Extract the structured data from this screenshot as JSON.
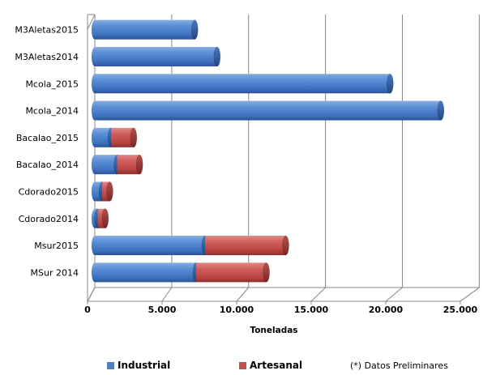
{
  "chart_data": {
    "type": "bar",
    "orientation": "horizontal",
    "stacked": true,
    "categories": [
      "M3Aletas2015",
      "M3Aletas2014",
      "Mcola_2015",
      "Mcola_2014",
      "Bacalao_2015",
      "Bacalao_2014",
      "Cdorado2015",
      "Cdorado2014",
      "Msur2015",
      "MSur 2014"
    ],
    "series": [
      {
        "name": "Industrial",
        "color": "#4F81BD",
        "values": [
          6700,
          8200,
          19800,
          23200,
          1100,
          1500,
          500,
          200,
          7400,
          6800
        ]
      },
      {
        "name": "Artesanal",
        "color": "#C0504D",
        "values": [
          0,
          0,
          0,
          0,
          1500,
          1500,
          500,
          500,
          5400,
          4700
        ]
      }
    ],
    "xlabel": "Toneladas",
    "xlim": [
      0,
      25000
    ],
    "xticks": [
      "0",
      "5.000",
      "10.000",
      "15.000",
      "20.000",
      "25.000"
    ],
    "grid": true,
    "legend_position": "bottom",
    "note": "(*) Datos Preliminares"
  }
}
